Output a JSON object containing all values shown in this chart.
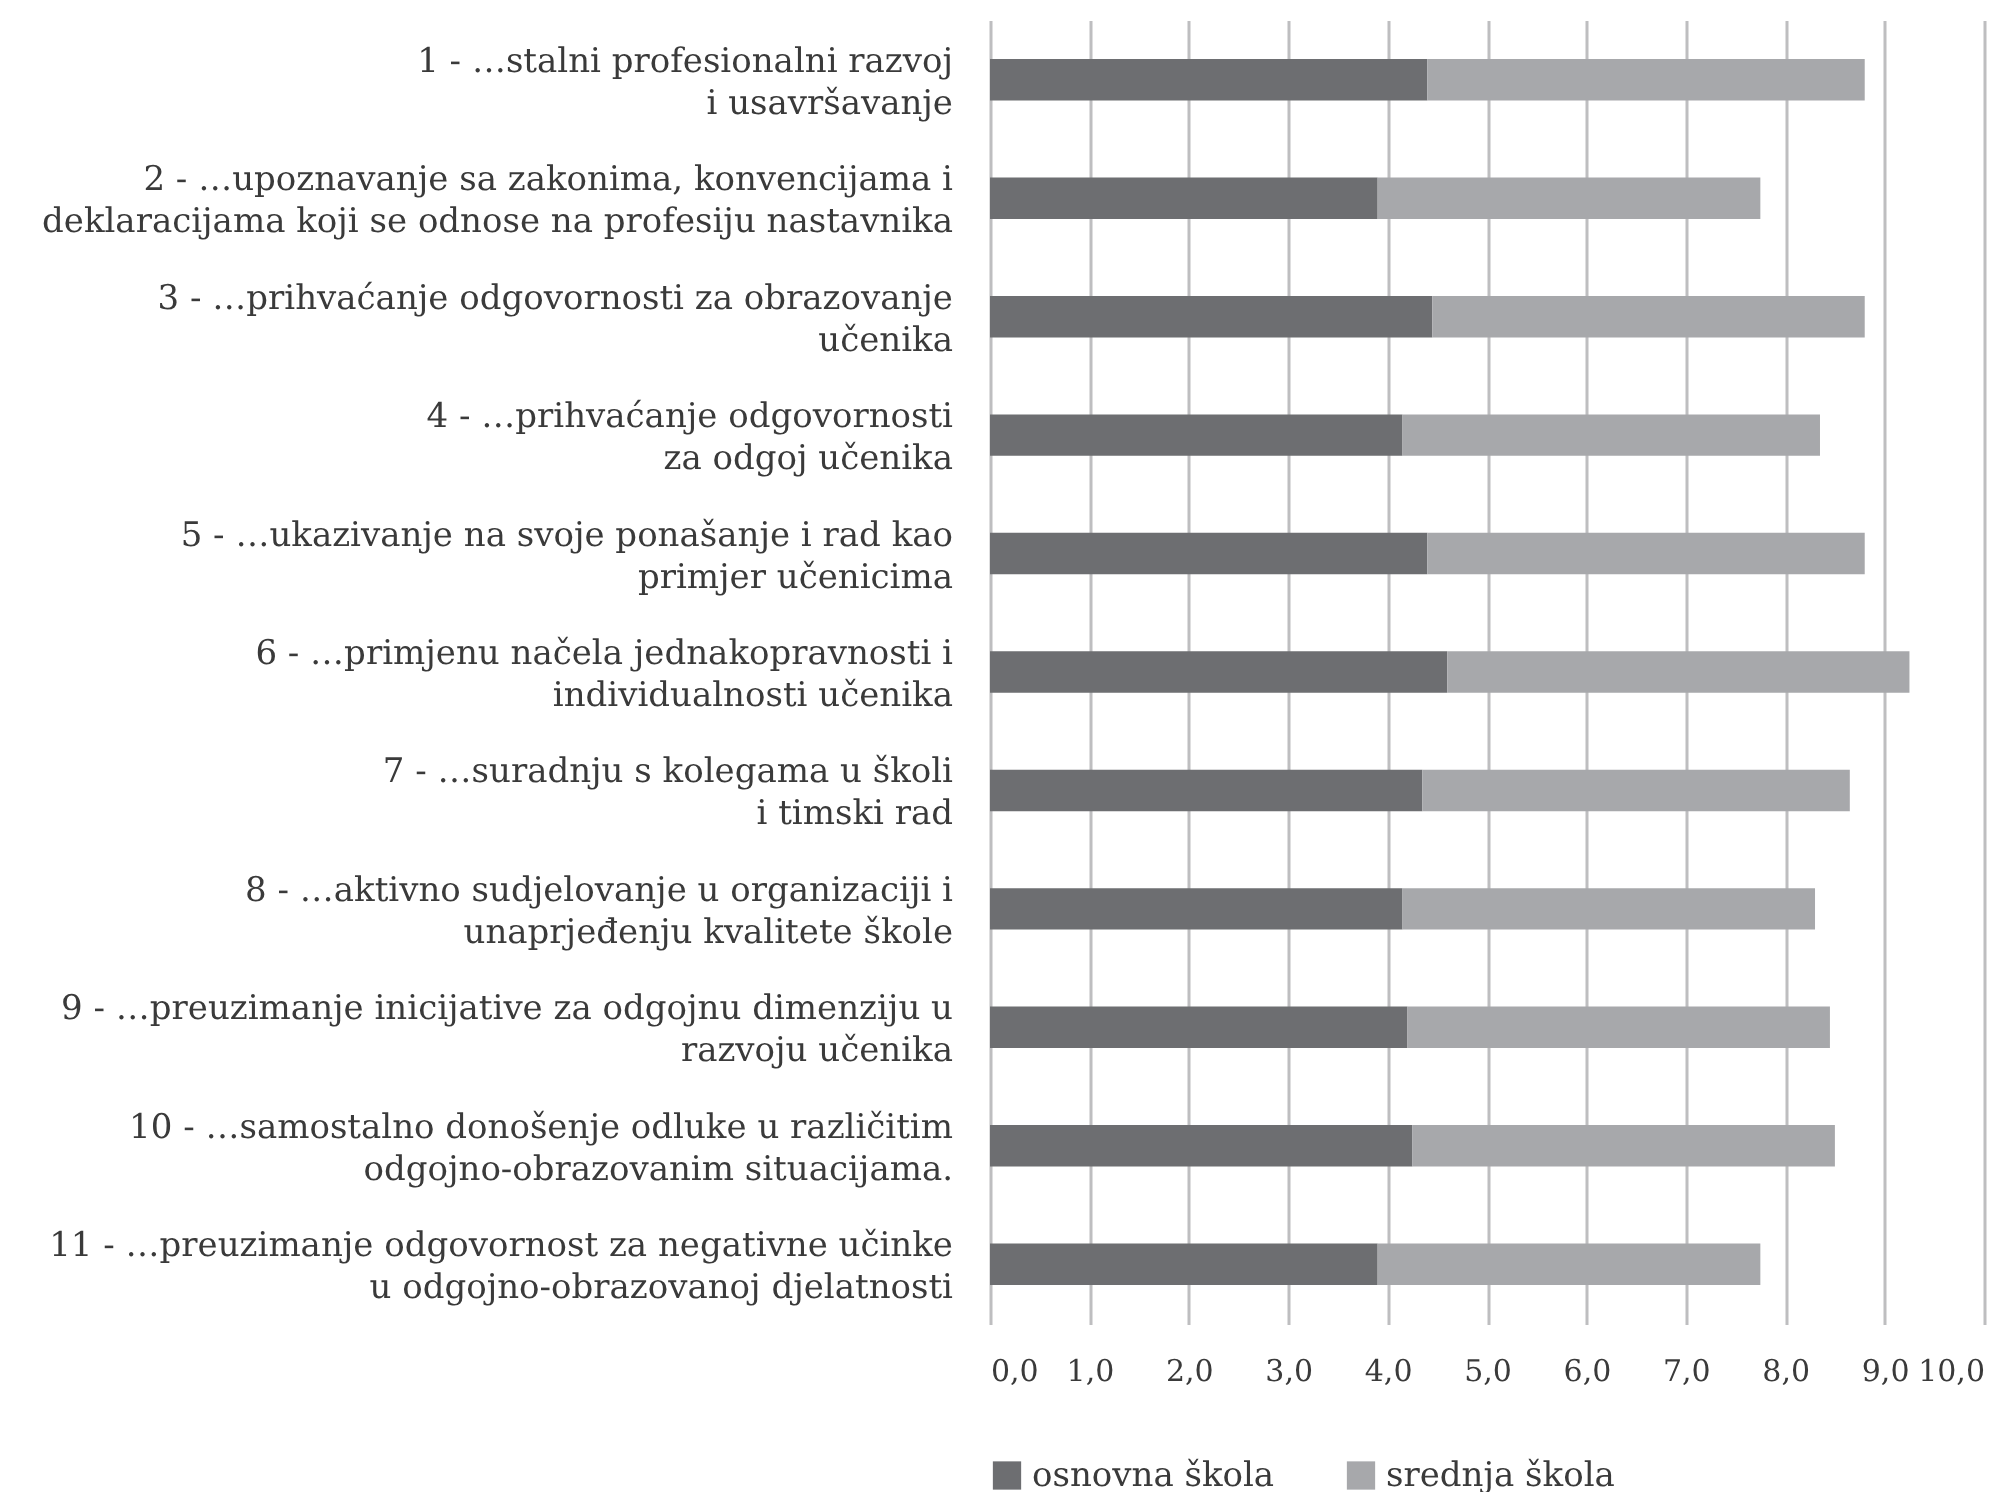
{
  "chart_data": {
    "type": "bar",
    "orientation": "horizontal",
    "stacked": true,
    "categories": [
      "1 - …stalni profesionalni razvoj\ni usavršavanje",
      "2 - …upoznavanje sa zakonima, konvencijama i\ndeklaracijama koji se odnose na profesiju nastavnika",
      "3 - …prihvaćanje odgovornosti za obrazovanje\nučenika",
      "4 - …prihvaćanje odgovornosti\nza odgoj učenika",
      "5 - …ukazivanje na svoje ponašanje i rad kao\nprimjer učenicima",
      "6 - …primjenu načela jednakopravnosti i\nindividualnosti učenika",
      "7 - …suradnju s kolegama u školi\ni timski rad",
      "8 - …aktivno sudjelovanje u organizaciji i\nunaprjeđenju kvalitete škole",
      "9 - …preuzimanje inicijative za odgojnu dimenziju u\nrazvoju učenika",
      "10 - …samostalno donošenje odluke u različitim\nodgojno-obrazovanim situacijama.",
      "11 - …preuzimanje odgovornost za negativne učinke\nu odgojno-obrazovanoj djelatnosti"
    ],
    "series": [
      {
        "name": "osnovna škola",
        "color": "#6d6e71",
        "values": [
          4.4,
          3.9,
          4.45,
          4.15,
          4.4,
          4.6,
          4.35,
          4.15,
          4.2,
          4.25,
          3.9
        ]
      },
      {
        "name": "srednja škola",
        "color": "#a7a8ab",
        "values": [
          4.4,
          3.85,
          4.35,
          4.2,
          4.4,
          4.65,
          4.3,
          4.15,
          4.25,
          4.25,
          3.85
        ]
      }
    ],
    "xlim": [
      0,
      10
    ],
    "xticks": [
      {
        "value": 0,
        "label": "0,0"
      },
      {
        "value": 1,
        "label": "1,0"
      },
      {
        "value": 2,
        "label": "2,0"
      },
      {
        "value": 3,
        "label": "3,0"
      },
      {
        "value": 4,
        "label": "4,0"
      },
      {
        "value": 5,
        "label": "5,0"
      },
      {
        "value": 6,
        "label": "6,0"
      },
      {
        "value": 7,
        "label": "7,0"
      },
      {
        "value": 8,
        "label": "8,0"
      },
      {
        "value": 9,
        "label": "9,0"
      },
      {
        "value": 10,
        "label": "10,0"
      }
    ],
    "grid": "x",
    "legend": "bottom"
  }
}
